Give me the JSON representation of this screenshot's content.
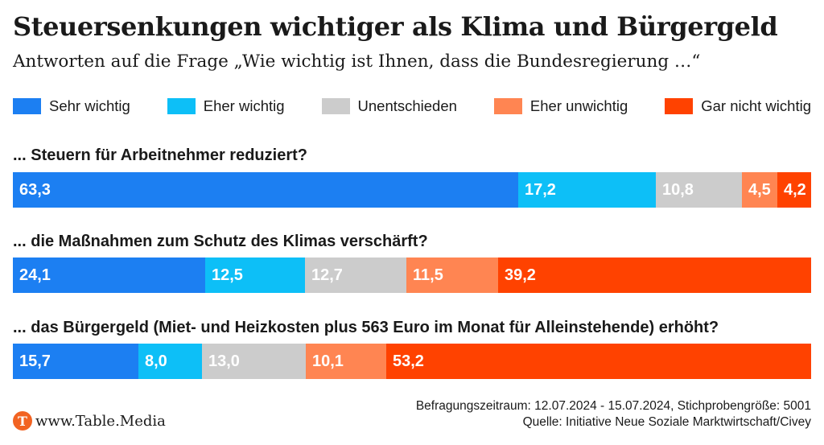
{
  "title": "Steuersenkungen wichtiger als Klima und Bürgergeld",
  "subtitle": "Antworten auf die Frage „Wie wichtig ist Ihnen, dass die Bundesregierung …“",
  "chart_data": {
    "type": "bar",
    "stacked": true,
    "orientation": "horizontal",
    "percent_scale": [
      0,
      100
    ],
    "categories": [
      "... Steuern für Arbeitnehmer reduziert?",
      "... die Maßnahmen zum Schutz des Klimas verschärft?",
      "... das Bürgergeld (Miet- und Heizkosten plus 563 Euro im Monat für Alleinstehende) erhöht?"
    ],
    "series": [
      {
        "name": "Sehr wichtig",
        "color": "#1c7ff2",
        "values": [
          63.3,
          24.1,
          15.7
        ],
        "labels": [
          "63,3",
          "24,1",
          "15,7"
        ]
      },
      {
        "name": "Eher wichtig",
        "color": "#0dbff7",
        "values": [
          17.2,
          12.5,
          8.0
        ],
        "labels": [
          "17,2",
          "12,5",
          "8,0"
        ]
      },
      {
        "name": "Unentschieden",
        "color": "#cccccc",
        "values": [
          10.8,
          12.7,
          13.0
        ],
        "labels": [
          "10,8",
          "12,7",
          "13,0"
        ]
      },
      {
        "name": "Eher unwichtig",
        "color": "#ff8552",
        "values": [
          4.5,
          11.5,
          10.1
        ],
        "labels": [
          "4,5",
          "11,5",
          "10,1"
        ]
      },
      {
        "name": "Gar nicht wichtig",
        "color": "#ff4200",
        "values": [
          4.2,
          39.2,
          53.2
        ],
        "labels": [
          "4,2",
          "39,2",
          "53,2"
        ]
      }
    ],
    "legend_position": "top"
  },
  "footer": {
    "logo_glyph": "T",
    "brand": "www.Table.Media",
    "period": "Befragungszeitraum: 12.07.2024 - 15.07.2024, Stichprobengröße: 5001",
    "source": "Quelle: Initiative Neue Soziale Marktwirtschaft/Civey"
  }
}
